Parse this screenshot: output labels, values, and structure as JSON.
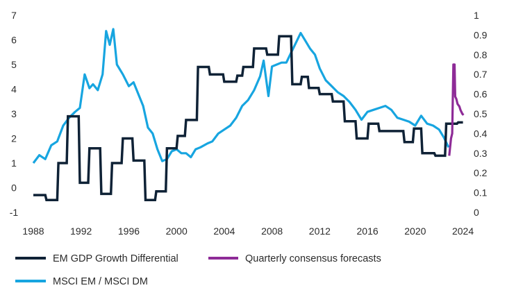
{
  "chart_data": {
    "type": "line",
    "title": "",
    "xlabel": "",
    "ylabel": "",
    "xlim": [
      1988,
      2024.2
    ],
    "ylim_left": [
      -1,
      7
    ],
    "ylim_right": [
      0,
      1
    ],
    "grid": false,
    "legend_position": "bottom",
    "x_ticks": [
      {
        "value": 1988,
        "label": "1988"
      },
      {
        "value": 1992,
        "label": "1992"
      },
      {
        "value": 1996,
        "label": "1996"
      },
      {
        "value": 2000,
        "label": "2000"
      },
      {
        "value": 2004,
        "label": "2004"
      },
      {
        "value": 2008,
        "label": "2008"
      },
      {
        "value": 2012,
        "label": "2012"
      },
      {
        "value": 2016,
        "label": "2016"
      },
      {
        "value": 2020,
        "label": "2020"
      },
      {
        "value": 2024,
        "label": "2024"
      }
    ],
    "y_left_ticks": [
      {
        "value": 7,
        "label": "7"
      },
      {
        "value": 6,
        "label": "6"
      },
      {
        "value": 5,
        "label": "5"
      },
      {
        "value": 4,
        "label": "4"
      },
      {
        "value": 3,
        "label": "3"
      },
      {
        "value": 2,
        "label": "2"
      },
      {
        "value": 1,
        "label": "1"
      },
      {
        "value": 0,
        "label": "0"
      },
      {
        "value": -1,
        "label": "-1"
      }
    ],
    "y_right_ticks": [
      {
        "value": 1,
        "label": "1"
      },
      {
        "value": 0.9,
        "label": "0.9"
      },
      {
        "value": 0.8,
        "label": "0.8"
      },
      {
        "value": 0.7,
        "label": "0.7"
      },
      {
        "value": 0.6,
        "label": "0.6"
      },
      {
        "value": 0.5,
        "label": "0.5"
      },
      {
        "value": 0.4,
        "label": "0.4"
      },
      {
        "value": 0.3,
        "label": "0.3"
      },
      {
        "value": 0.2,
        "label": "0.2"
      },
      {
        "value": 0.1,
        "label": "0.1"
      },
      {
        "value": 0,
        "label": "0"
      }
    ],
    "series": [
      {
        "name": "EM GDP Growth Differential",
        "axis": "left",
        "style": "step",
        "color": "#0f2236",
        "x": [
          1988.0,
          1989.0,
          1989.1,
          1990.0,
          1990.1,
          1990.8,
          1990.9,
          1991.8,
          1991.9,
          1992.6,
          1992.7,
          1993.6,
          1993.7,
          1994.5,
          1994.6,
          1995.4,
          1995.5,
          1996.3,
          1996.4,
          1997.3,
          1997.4,
          1998.2,
          1998.3,
          1999.1,
          1999.2,
          2000.0,
          2000.1,
          2000.7,
          2000.8,
          2001.7,
          2001.8,
          2002.7,
          2002.8,
          2003.9,
          2004.0,
          2005.0,
          2005.1,
          2005.5,
          2005.6,
          2006.4,
          2006.5,
          2007.5,
          2007.6,
          2008.5,
          2008.6,
          2009.6,
          2009.7,
          2010.4,
          2010.5,
          2011.0,
          2011.1,
          2011.9,
          2012.0,
          2013.0,
          2013.1,
          2014.0,
          2014.1,
          2015.0,
          2015.1,
          2016.0,
          2016.1,
          2016.9,
          2017.0,
          2018.0,
          2018.1,
          2019.0,
          2019.1,
          2019.8,
          2019.9,
          2020.5,
          2020.6,
          2021.6,
          2021.7,
          2022.5,
          2022.6,
          2023.5,
          2023.6,
          2024.0
        ],
        "y": [
          -0.3,
          -0.3,
          -0.5,
          -0.5,
          1.0,
          1.0,
          2.9,
          2.9,
          0.2,
          0.2,
          1.6,
          1.6,
          -0.25,
          -0.25,
          1.0,
          1.0,
          2.0,
          2.0,
          1.1,
          1.1,
          -0.5,
          -0.5,
          -0.15,
          -0.15,
          1.6,
          1.6,
          2.1,
          2.1,
          2.75,
          2.75,
          4.9,
          4.9,
          4.6,
          4.6,
          4.3,
          4.3,
          4.55,
          4.55,
          4.9,
          4.9,
          5.65,
          5.65,
          5.4,
          5.4,
          6.15,
          6.15,
          4.2,
          4.2,
          4.5,
          4.5,
          4.05,
          4.05,
          3.8,
          3.8,
          3.5,
          3.5,
          2.7,
          2.7,
          2.0,
          2.0,
          2.6,
          2.6,
          2.3,
          2.3,
          2.3,
          2.3,
          1.85,
          1.85,
          2.4,
          2.4,
          1.4,
          1.4,
          1.3,
          1.3,
          2.6,
          2.6,
          2.65,
          2.65
        ]
      },
      {
        "name": "Quarterly consensus forecasts",
        "axis": "left",
        "style": "line",
        "color": "#8e2b97",
        "x": [
          2022.85,
          2023.0,
          2023.1,
          2023.2,
          2023.3,
          2023.35,
          2023.45,
          2023.55,
          2023.7,
          2023.8,
          2023.95,
          2024.05
        ],
        "y": [
          1.3,
          2.0,
          2.2,
          5.0,
          5.0,
          3.7,
          3.6,
          3.4,
          3.3,
          3.15,
          3.0,
          2.95
        ]
      },
      {
        "name": "MSCI EM / MSCI DM",
        "axis": "right",
        "style": "line",
        "color": "#17a5e0",
        "x": [
          1988.0,
          1988.5,
          1989.0,
          1989.5,
          1990.0,
          1990.5,
          1991.0,
          1991.5,
          1991.9,
          1992.3,
          1992.7,
          1993.0,
          1993.4,
          1993.8,
          1994.1,
          1994.4,
          1994.7,
          1995.0,
          1995.5,
          1996.0,
          1996.4,
          1996.8,
          1997.2,
          1997.6,
          1998.0,
          1998.4,
          1998.8,
          1999.2,
          1999.6,
          2000.0,
          2000.4,
          2000.8,
          2001.2,
          2001.6,
          2002.0,
          2002.6,
          2003.0,
          2003.5,
          2004.0,
          2004.5,
          2005.0,
          2005.5,
          2006.0,
          2006.5,
          2007.0,
          2007.3,
          2007.7,
          2008.0,
          2008.4,
          2008.8,
          2009.2,
          2009.6,
          2010.0,
          2010.4,
          2010.8,
          2011.2,
          2011.6,
          2012.0,
          2012.5,
          2013.0,
          2013.5,
          2014.0,
          2014.5,
          2015.0,
          2015.5,
          2016.0,
          2016.5,
          2017.0,
          2017.5,
          2018.0,
          2018.5,
          2019.0,
          2019.5,
          2020.0,
          2020.5,
          2021.0,
          2021.5,
          2022.0,
          2022.4,
          2022.8
        ],
        "y": [
          0.25,
          0.29,
          0.27,
          0.34,
          0.36,
          0.44,
          0.48,
          0.51,
          0.53,
          0.7,
          0.63,
          0.65,
          0.62,
          0.7,
          0.92,
          0.85,
          0.93,
          0.75,
          0.7,
          0.64,
          0.66,
          0.6,
          0.54,
          0.43,
          0.4,
          0.32,
          0.26,
          0.27,
          0.31,
          0.32,
          0.3,
          0.3,
          0.28,
          0.32,
          0.33,
          0.35,
          0.36,
          0.4,
          0.42,
          0.44,
          0.48,
          0.54,
          0.57,
          0.62,
          0.69,
          0.77,
          0.59,
          0.74,
          0.75,
          0.76,
          0.76,
          0.81,
          0.86,
          0.91,
          0.87,
          0.83,
          0.8,
          0.73,
          0.67,
          0.64,
          0.61,
          0.59,
          0.56,
          0.52,
          0.47,
          0.51,
          0.52,
          0.53,
          0.54,
          0.52,
          0.48,
          0.47,
          0.46,
          0.44,
          0.49,
          0.45,
          0.44,
          0.42,
          0.38,
          0.33
        ]
      }
    ]
  },
  "legend": {
    "items": [
      {
        "label": "EM GDP Growth Differential",
        "color": "#0f2236"
      },
      {
        "label": "Quarterly consensus forecasts",
        "color": "#8e2b97"
      },
      {
        "label": "MSCI EM / MSCI DM",
        "color": "#17a5e0"
      }
    ]
  }
}
